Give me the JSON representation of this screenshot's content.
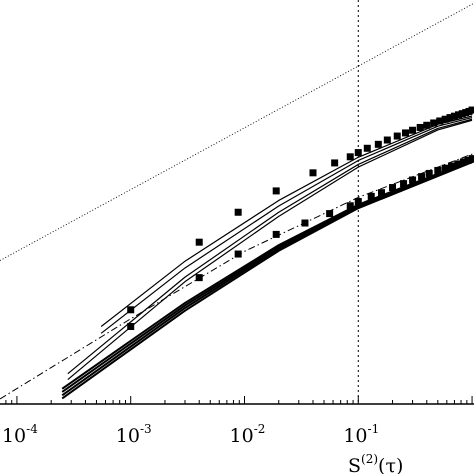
{
  "chart_data": {
    "type": "line",
    "xscale": "log",
    "yscale": "log",
    "xlim": [
      7.1e-05,
      1.04
    ],
    "ylim": [
      8.5e-05,
      0.255
    ],
    "xlabel": "S",
    "xlabel_sup": "(2)",
    "xlabel_arg": "(τ)",
    "ylabel": "",
    "grid": false,
    "legend": "none",
    "xticks": [
      {
        "value": 0.0001,
        "base": "10",
        "exp": "-4"
      },
      {
        "value": 0.001,
        "base": "10",
        "exp": "-3"
      },
      {
        "value": 0.01,
        "base": "10",
        "exp": "-2"
      },
      {
        "value": 0.1,
        "base": "10",
        "exp": "-1"
      }
    ],
    "vertical_reference": {
      "x": 0.1,
      "style": "dotted"
    },
    "series": [
      {
        "style": "dotted-thin",
        "x": [
          7.1e-05,
          1.04
        ],
        "y": [
          0.00146,
          0.239
        ]
      },
      {
        "style": "squares",
        "x": [
          0.001,
          0.004,
          0.0088,
          0.019,
          0.04,
          0.062,
          0.085,
          0.1,
          0.12,
          0.15,
          0.18,
          0.22,
          0.26,
          0.3,
          0.35,
          0.4,
          0.46,
          0.52,
          0.58,
          0.64,
          0.7,
          0.76,
          0.82,
          0.88,
          0.94,
          1.0
        ],
        "y": [
          0.00055,
          0.0021,
          0.0038,
          0.0058,
          0.0083,
          0.0101,
          0.0114,
          0.0124,
          0.0135,
          0.0146,
          0.0159,
          0.0172,
          0.0183,
          0.0193,
          0.0204,
          0.0213,
          0.0223,
          0.0232,
          0.024,
          0.0248,
          0.0255,
          0.0262,
          0.0268,
          0.0274,
          0.028,
          0.0288
        ]
      },
      {
        "style": "solid",
        "x": [
          0.00055,
          0.003,
          0.02,
          0.1,
          0.5,
          1.0
        ],
        "y": [
          0.000395,
          0.00144,
          0.0048,
          0.0113,
          0.0217,
          0.0256
        ]
      },
      {
        "style": "solid",
        "x": [
          0.00055,
          0.003,
          0.02,
          0.1,
          0.5,
          1.0
        ],
        "y": [
          0.000345,
          0.00126,
          0.0043,
          0.0106,
          0.0209,
          0.0248
        ]
      },
      {
        "style": "solid",
        "x": [
          0.00028,
          0.003,
          0.02,
          0.1,
          0.5,
          1.0
        ],
        "y": [
          0.000155,
          0.00105,
          0.0038,
          0.0098,
          0.02,
          0.024
        ]
      },
      {
        "style": "solid",
        "x": [
          0.00028,
          0.003,
          0.02,
          0.1,
          0.5,
          1.0
        ],
        "y": [
          0.000138,
          0.00096,
          0.0035,
          0.0093,
          0.0194,
          0.0235
        ]
      },
      {
        "style": "dashdot",
        "x": [
          7.1e-05,
          0.001,
          0.01,
          0.1,
          1.04
        ],
        "y": [
          9.4e-05,
          0.00046,
          0.00175,
          0.0051,
          0.0122
        ]
      },
      {
        "style": "squares",
        "x": [
          0.001,
          0.004,
          0.0088,
          0.019,
          0.034,
          0.056,
          0.085,
          0.1,
          0.13,
          0.16,
          0.2,
          0.25,
          0.3,
          0.36,
          0.42,
          0.5,
          0.58,
          0.66,
          0.75,
          0.84,
          0.92,
          1.0
        ],
        "y": [
          0.000395,
          0.00104,
          0.00166,
          0.00245,
          0.00307,
          0.0037,
          0.00432,
          0.0047,
          0.0052,
          0.0056,
          0.0062,
          0.0067,
          0.0072,
          0.0077,
          0.0082,
          0.0087,
          0.0091,
          0.0095,
          0.0099,
          0.0103,
          0.0106,
          0.011
        ]
      },
      {
        "style": "solid-bundle",
        "x": [
          0.00025,
          0.003,
          0.02,
          0.1,
          0.5,
          1.04
        ],
        "y": [
          0.000115,
          0.00063,
          0.00198,
          0.00442,
          0.00815,
          0.0107
        ]
      },
      {
        "style": "solid-bundle",
        "x": [
          0.00025,
          0.003,
          0.02,
          0.1,
          0.5,
          1.04
        ],
        "y": [
          0.000108,
          0.0006,
          0.00191,
          0.00432,
          0.00803,
          0.0106
        ]
      },
      {
        "style": "solid-bundle",
        "x": [
          0.00025,
          0.003,
          0.02,
          0.1,
          0.5,
          1.04
        ],
        "y": [
          0.000101,
          0.00057,
          0.00184,
          0.00422,
          0.00791,
          0.0105
        ]
      },
      {
        "style": "solid-bundle",
        "x": [
          0.00025,
          0.003,
          0.02,
          0.1,
          0.5,
          1.04
        ],
        "y": [
          9.5e-05,
          0.00054,
          0.00177,
          0.00412,
          0.00779,
          0.0104
        ]
      }
    ]
  }
}
